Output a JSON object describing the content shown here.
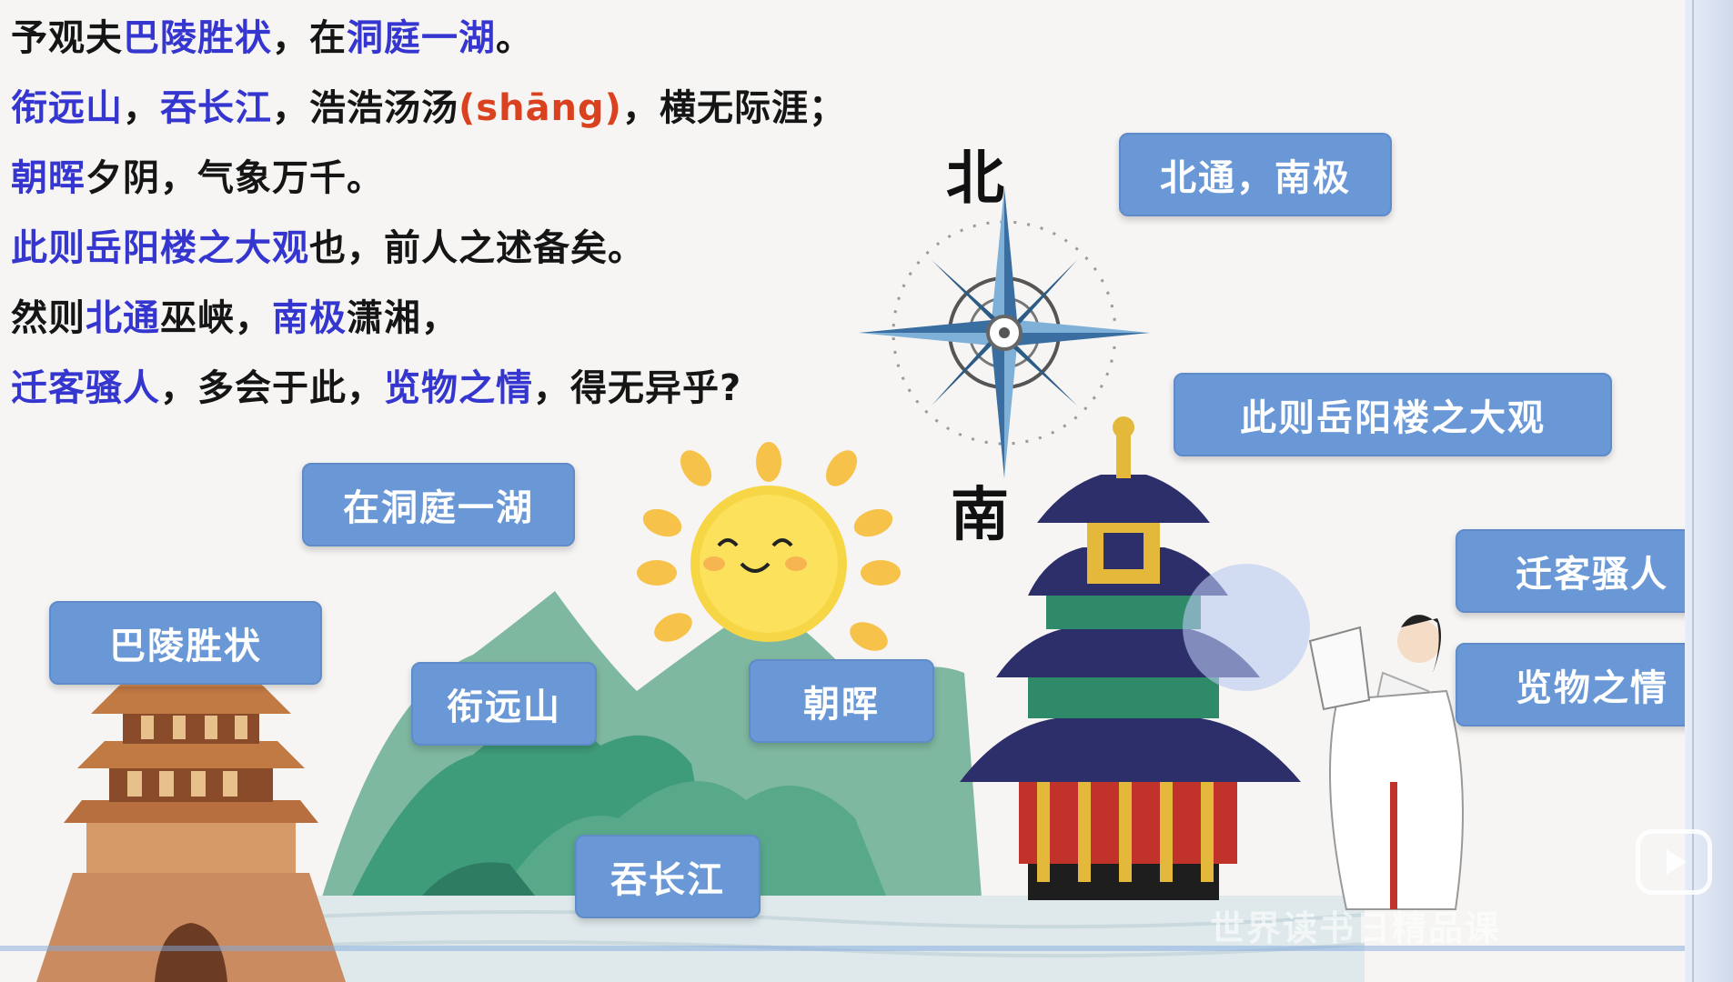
{
  "poem": {
    "line1": {
      "t1": "予观夫",
      "h1": "巴陵胜状",
      "t2": "，在",
      "h2": "洞庭一湖",
      "t3": "。"
    },
    "line2": {
      "h1": "衔远山",
      "t1": "，",
      "h2": "吞长江",
      "t2": "，浩浩汤汤",
      "pinyin": "(shāng)",
      "t3": "，横无际涯；"
    },
    "line3": {
      "h1": "朝晖",
      "t1": "夕阴，气象万千。"
    },
    "line4": {
      "h1": "此则岳阳楼之大观",
      "t1": "也，前人之述备矣。"
    },
    "line5": {
      "t1": "然则",
      "h1": "北通",
      "t2": "巫峡，",
      "h2": "南极",
      "t3": "潇湘，"
    },
    "line6": {
      "h1": "迁客骚人",
      "t1": "，多会于此，",
      "h2": "览物之情",
      "t2": "，得无异乎?"
    }
  },
  "compass": {
    "north": "北",
    "south": "南"
  },
  "buttons": {
    "beitong": "北通，南极",
    "daguan": "此则岳阳楼之大观",
    "dongting": "在洞庭一湖",
    "baling": "巴陵胜状",
    "qianke": "迁客骚人",
    "lanwu": "览物之情",
    "xianyuan": "衔远山",
    "zhaohui": "朝晖",
    "tunchang": "吞长江"
  },
  "watermark": "世界读书日精品课",
  "colors": {
    "highlight": "#3535d0",
    "pinyin": "#d9411f",
    "button": "#6a98d6"
  }
}
